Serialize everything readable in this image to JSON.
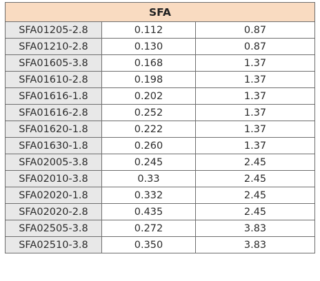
{
  "table": {
    "header": "SFA",
    "rows": [
      [
        "SFA01205-2.8",
        "0.112",
        "0.87"
      ],
      [
        "SFA01210-2.8",
        "0.130",
        "0.87"
      ],
      [
        "SFA01605-3.8",
        "0.168",
        "1.37"
      ],
      [
        "SFA01610-2.8",
        "0.198",
        "1.37"
      ],
      [
        "SFA01616-1.8",
        "0.202",
        "1.37"
      ],
      [
        "SFA01616-2.8",
        "0.252",
        "1.37"
      ],
      [
        "SFA01620-1.8",
        "0.222",
        "1.37"
      ],
      [
        "SFA01630-1.8",
        "0.260",
        "1.37"
      ],
      [
        "SFA02005-3.8",
        "0.245",
        "2.45"
      ],
      [
        "SFA02010-3.8",
        "0.33",
        "2.45"
      ],
      [
        "SFA02020-1.8",
        "0.332",
        "2.45"
      ],
      [
        "SFA02020-2.8",
        "0.435",
        "2.45"
      ],
      [
        "SFA02505-3.8",
        "0.272",
        "3.83"
      ],
      [
        "SFA02510-3.8",
        "0.350",
        "3.83"
      ]
    ]
  },
  "colors": {
    "header_bg": "#f9dbc1",
    "code_column_bg": "#e8e8e8",
    "border": "#6d6d6d"
  }
}
